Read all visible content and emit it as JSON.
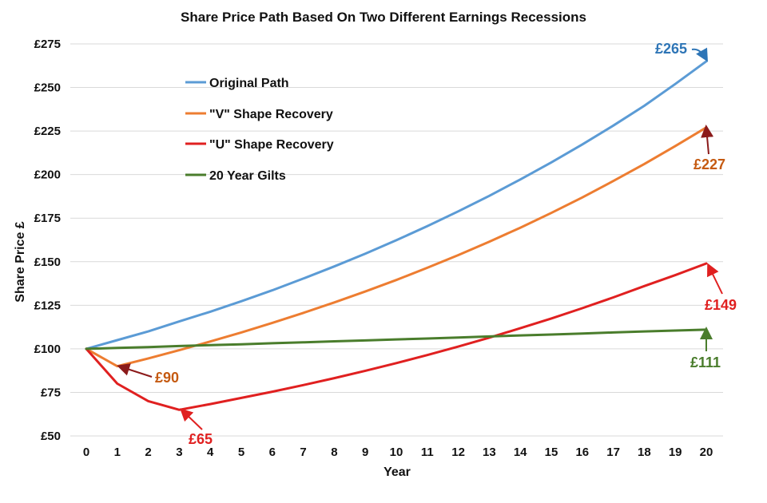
{
  "chart_data": {
    "type": "line",
    "title": "Share Price Path Based On Two Different Earnings Recessions",
    "xlabel": "Year",
    "ylabel": "Share Price £",
    "x": [
      0,
      1,
      2,
      3,
      4,
      5,
      6,
      7,
      8,
      9,
      10,
      11,
      12,
      13,
      14,
      15,
      16,
      17,
      18,
      19,
      20
    ],
    "xlim": [
      0,
      20
    ],
    "ylim": [
      50,
      275
    ],
    "y_ticks": [
      "£50",
      "£75",
      "£100",
      "£125",
      "£150",
      "£175",
      "£200",
      "£225",
      "£250",
      "£275"
    ],
    "y_tick_values": [
      50,
      75,
      100,
      125,
      150,
      175,
      200,
      225,
      250,
      275
    ],
    "grid": true,
    "legend_position": "top-left",
    "series": [
      {
        "name": "Original Path",
        "color": "#5b9bd5",
        "values": [
          100,
          105,
          110,
          115.7,
          121.3,
          127.3,
          133.6,
          140.3,
          147.3,
          154.6,
          162.3,
          170.4,
          178.9,
          187.8,
          197.2,
          207.0,
          217.3,
          228.1,
          239.5,
          252.0,
          265
        ]
      },
      {
        "name": "\"V\" Shape Recovery",
        "color": "#ed7d31",
        "values": [
          100,
          90,
          94.5,
          99.2,
          104.2,
          109.4,
          114.9,
          120.6,
          126.6,
          132.9,
          139.5,
          146.5,
          153.8,
          161.5,
          169.5,
          178.0,
          186.9,
          196.3,
          206.1,
          216.4,
          227
        ]
      },
      {
        "name": "\"U\" Shape Recovery",
        "color": "#e02020",
        "values": [
          100,
          80,
          70,
          65,
          68.3,
          71.8,
          75.4,
          79.2,
          83.2,
          87.4,
          91.8,
          96.4,
          101.3,
          106.4,
          111.8,
          117.4,
          123.3,
          129.5,
          136.0,
          142.3,
          149
        ]
      },
      {
        "name": "20 Year Gilts",
        "color": "#4a7d2c",
        "values": [
          100,
          100.5,
          101,
          101.6,
          102.1,
          102.6,
          103.2,
          103.7,
          104.3,
          104.8,
          105.4,
          105.9,
          106.5,
          107.1,
          107.7,
          108.2,
          108.8,
          109.4,
          110.0,
          110.5,
          111
        ]
      }
    ],
    "annotations": [
      {
        "text": "£265",
        "series": 0,
        "x": 20,
        "color": "#2e75b6"
      },
      {
        "text": "£227",
        "series": 1,
        "x": 20,
        "color": "#c55a11"
      },
      {
        "text": "£149",
        "series": 2,
        "x": 20,
        "color": "#e02020"
      },
      {
        "text": "£111",
        "series": 3,
        "x": 20,
        "color": "#4a7d2c"
      },
      {
        "text": "£90",
        "series": 1,
        "x": 1,
        "color": "#c55a11"
      },
      {
        "text": "£65",
        "series": 2,
        "x": 3,
        "color": "#e02020"
      }
    ]
  }
}
